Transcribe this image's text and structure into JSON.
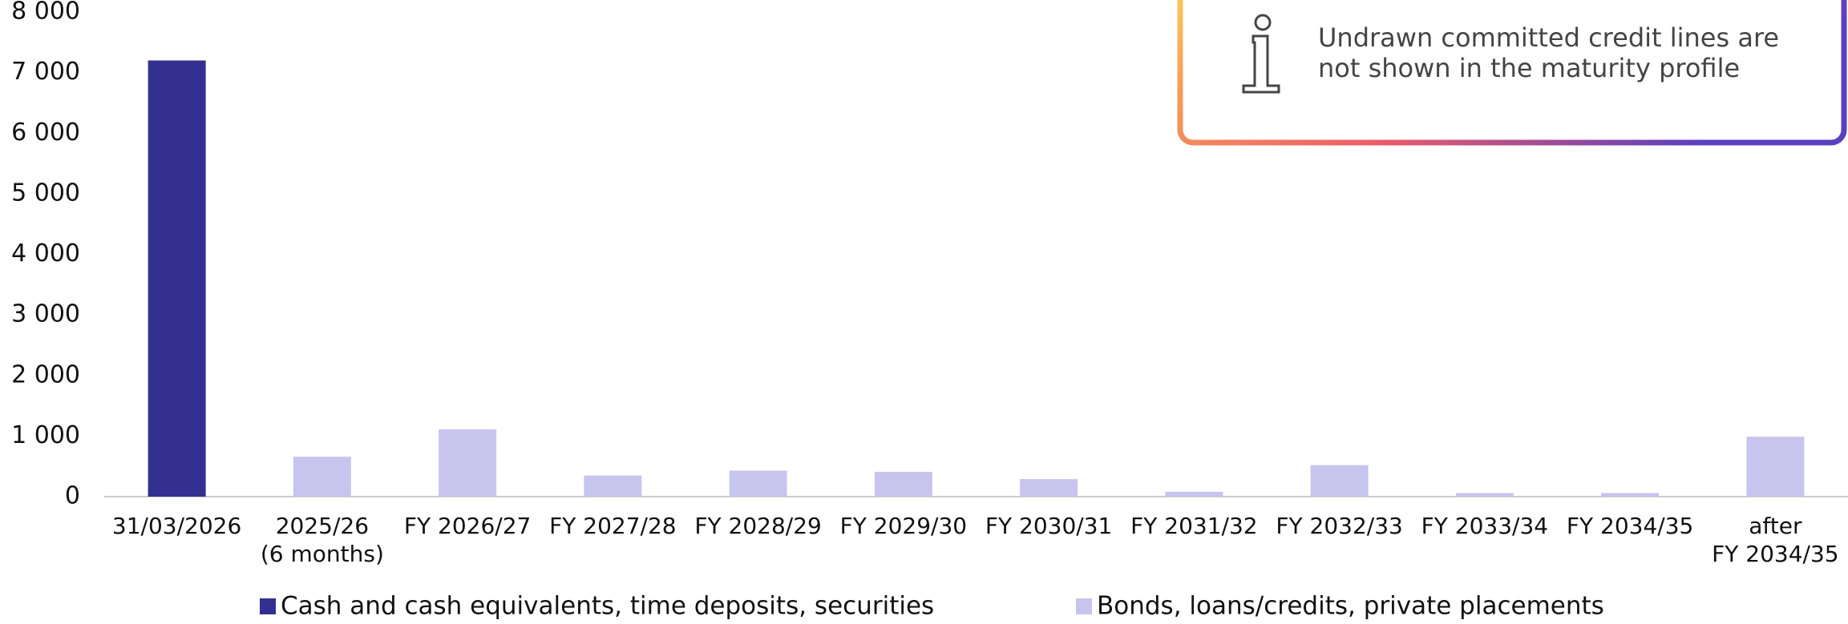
{
  "chart_data": {
    "type": "bar",
    "categories": [
      "31/03/2026",
      "2025/26\n(6 months)",
      "FY 2026/27",
      "FY 2027/28",
      "FY 2028/29",
      "FY 2029/30",
      "FY 2030/31",
      "FY 2031/32",
      "FY 2032/33",
      "FY 2033/34",
      "FY 2034/35",
      "after\nFY 2034/35"
    ],
    "series": [
      {
        "name": "Cash and cash equivalents, time deposits, securities",
        "color": "#333092",
        "values": [
          7200,
          null,
          null,
          null,
          null,
          null,
          null,
          null,
          null,
          null,
          null,
          null
        ]
      },
      {
        "name": "Bonds, loans/credits, private placements",
        "color": "#c7c5ee",
        "values": [
          null,
          660,
          1110,
          350,
          430,
          410,
          290,
          80,
          520,
          60,
          60,
          990
        ]
      }
    ],
    "ylim": [
      0,
      8000
    ],
    "yticks": [
      0,
      {
        "value": 1000,
        "label": "1 000"
      },
      {
        "value": 2000,
        "label": "2 000"
      },
      {
        "value": 3000,
        "label": "3 000"
      },
      {
        "value": 4000,
        "label": "4 000"
      },
      {
        "value": 5000,
        "label": "5 000"
      },
      {
        "value": 6000,
        "label": "6 000"
      },
      {
        "value": 7000,
        "label": "7 000"
      },
      {
        "value": 8000,
        "label": "8 000"
      }
    ],
    "note": "Undrawn committed credit lines are\nnot shown in the maturity profile",
    "legend": "bottom"
  }
}
